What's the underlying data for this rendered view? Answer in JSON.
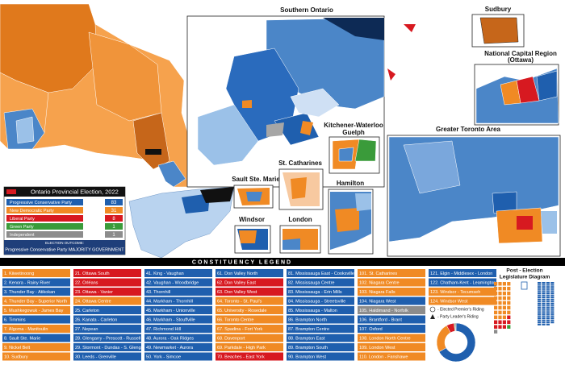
{
  "insets": {
    "southern_ontario": "Southern Ontario",
    "sudbury": "Sudbury",
    "ottawa": "National Capital Region",
    "ottawa_sub": "(Ottawa)",
    "kitchener": "Kitchener-Waterloo",
    "guelph": "Guelph",
    "gta": "Greater Toronto Area",
    "sault": "Sault Ste. Marie",
    "st_catharines": "St. Catharines",
    "hamilton": "Hamilton",
    "windsor": "Windsor",
    "london": "London"
  },
  "legend": {
    "title": "Ontario Provincial Election, 2022",
    "parties": [
      {
        "name": "Progressive Conservative Party",
        "seats": 83,
        "color": "#1f5fae"
      },
      {
        "name": "New Democratic Party",
        "seats": 31,
        "color": "#f08a24"
      },
      {
        "name": "Liberal Party",
        "seats": 8,
        "color": "#d71920"
      },
      {
        "name": "Green Party",
        "seats": 1,
        "color": "#3a9b3a"
      },
      {
        "name": "Independent",
        "seats": 1,
        "color": "#8c8c8c"
      }
    ],
    "outcome_label": "ELECTION OUTCOME:",
    "outcome": "Progressive Conservative Party MAJORITY GOVERNMENT"
  },
  "constituency_legend": {
    "title": "CONSTITUENCY LEGEND",
    "columns": [
      [
        {
          "name": "1. Kiiwetinoong",
          "color": "#f08a24"
        },
        {
          "name": "2. Kenora - Rainy River",
          "color": "#1f5fae"
        },
        {
          "name": "3. Thunder Bay - Atikokan",
          "color": "#1f5fae"
        },
        {
          "name": "4. Thunder Bay - Superior North",
          "color": "#f08a24"
        },
        {
          "name": "5. Mushkegowuk - James Bay",
          "color": "#f08a24"
        },
        {
          "name": "6. Timmins",
          "color": "#1f5fae"
        },
        {
          "name": "7. Algoma - Manitoulin",
          "color": "#f08a24"
        },
        {
          "name": "8. Sault Ste. Marie",
          "color": "#1f5fae"
        },
        {
          "name": "9. Nickel Belt",
          "color": "#f08a24"
        },
        {
          "name": "10. Sudbury",
          "color": "#f08a24"
        }
      ],
      [
        {
          "name": "21. Ottawa South",
          "color": "#d71920"
        },
        {
          "name": "22. Orléans",
          "color": "#d71920"
        },
        {
          "name": "23. Ottawa - Vanier",
          "color": "#d71920"
        },
        {
          "name": "24. Ottawa Centre",
          "color": "#f08a24"
        },
        {
          "name": "25. Carleton",
          "color": "#1f5fae"
        },
        {
          "name": "26. Kanata - Carleton",
          "color": "#1f5fae"
        },
        {
          "name": "27. Nepean",
          "color": "#1f5fae"
        },
        {
          "name": "28. Glengarry - Prescott - Russell",
          "color": "#1f5fae"
        },
        {
          "name": "29. Stormont - Dundas - S. Glengarry",
          "color": "#1f5fae"
        },
        {
          "name": "30. Leeds - Grenville",
          "color": "#1f5fae"
        }
      ],
      [
        {
          "name": "41. King - Vaughan",
          "color": "#1f5fae"
        },
        {
          "name": "42. Vaughan - Woodbridge",
          "color": "#1f5fae"
        },
        {
          "name": "43. Thornhill",
          "color": "#1f5fae"
        },
        {
          "name": "44. Markham - Thornhill",
          "color": "#1f5fae"
        },
        {
          "name": "45. Markham - Unionville",
          "color": "#1f5fae"
        },
        {
          "name": "46. Markham - Stouffville",
          "color": "#1f5fae"
        },
        {
          "name": "47. Richmond Hill",
          "color": "#1f5fae"
        },
        {
          "name": "48. Aurora - Oak Ridges",
          "color": "#1f5fae"
        },
        {
          "name": "49. Newmarket - Aurora",
          "color": "#1f5fae"
        },
        {
          "name": "50. York - Simcoe",
          "color": "#1f5fae"
        }
      ],
      [
        {
          "name": "61. Don Valley North",
          "color": "#1f5fae"
        },
        {
          "name": "62. Don Valley East",
          "color": "#d71920"
        },
        {
          "name": "63. Don Valley West",
          "color": "#d71920"
        },
        {
          "name": "64. Toronto - St. Paul's",
          "color": "#f08a24"
        },
        {
          "name": "65. University - Rosedale",
          "color": "#f08a24"
        },
        {
          "name": "66. Toronto Centre",
          "color": "#f08a24"
        },
        {
          "name": "67. Spadina - Fort York",
          "color": "#f08a24"
        },
        {
          "name": "68. Davenport",
          "color": "#f08a24"
        },
        {
          "name": "69. Parkdale - High Park",
          "color": "#f08a24"
        },
        {
          "name": "70. Beaches - East York",
          "color": "#d71920"
        }
      ],
      [
        {
          "name": "81. Mississauga East - Cooksville",
          "color": "#1f5fae"
        },
        {
          "name": "82. Mississauga Centre",
          "color": "#1f5fae"
        },
        {
          "name": "83. Mississauga - Erin Mills",
          "color": "#1f5fae"
        },
        {
          "name": "84. Mississauga - Streetsville",
          "color": "#1f5fae"
        },
        {
          "name": "85. Mississauga - Malton",
          "color": "#1f5fae"
        },
        {
          "name": "86. Brampton North",
          "color": "#1f5fae"
        },
        {
          "name": "87. Brampton Centre",
          "color": "#1f5fae"
        },
        {
          "name": "88. Brampton East",
          "color": "#1f5fae"
        },
        {
          "name": "89. Brampton South",
          "color": "#1f5fae"
        },
        {
          "name": "90. Brampton West",
          "color": "#1f5fae"
        }
      ],
      [
        {
          "name": "101. St. Catharines",
          "color": "#f08a24"
        },
        {
          "name": "102. Niagara Centre",
          "color": "#f08a24"
        },
        {
          "name": "103. Niagara Falls",
          "color": "#f08a24"
        },
        {
          "name": "104. Niagara West",
          "color": "#1f5fae"
        },
        {
          "name": "105. Haldimand - Norfolk",
          "color": "#8c8c8c"
        },
        {
          "name": "106. Brantford - Brant",
          "color": "#1f5fae"
        },
        {
          "name": "107. Oxford",
          "color": "#1f5fae"
        },
        {
          "name": "108. London North Centre",
          "color": "#f08a24"
        },
        {
          "name": "109. London West",
          "color": "#f08a24"
        },
        {
          "name": "110. London - Fanshawe",
          "color": "#f08a24"
        }
      ],
      [
        {
          "name": "121. Elgin - Middlesex - London",
          "color": "#1f5fae"
        },
        {
          "name": "122. Chatham-Kent - Leamington",
          "color": "#1f5fae"
        },
        {
          "name": "123. Windsor - Tecumseh",
          "color": "#f08a24"
        },
        {
          "name": "124. Windsor West",
          "color": "#f08a24"
        }
      ]
    ],
    "premier_riding": "- Elected Premier's Riding",
    "leader_riding": "- Party Leader's Riding"
  },
  "diagram": {
    "title": "Post - Election",
    "subtitle": "Legislature Diagram"
  }
}
